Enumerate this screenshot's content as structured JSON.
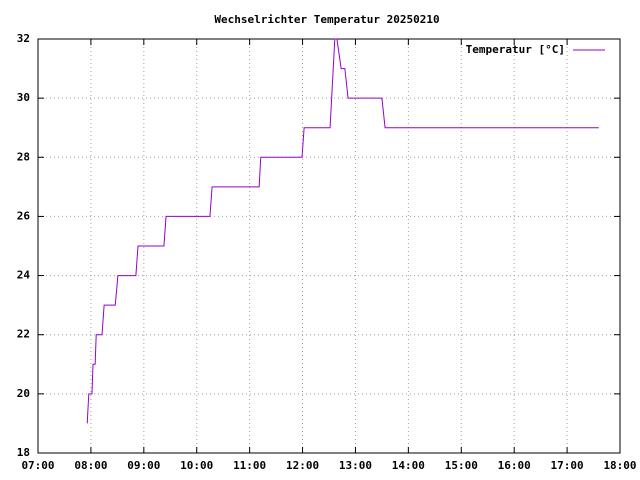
{
  "chart_data": {
    "type": "line",
    "title": "Wechselrichter Temperatur 20250210",
    "x": [
      7.93,
      7.96,
      8.02,
      8.04,
      8.08,
      8.1,
      8.21,
      8.25,
      8.46,
      8.51,
      8.85,
      8.89,
      9.38,
      9.42,
      10.25,
      10.29,
      11.18,
      11.21,
      11.99,
      12.03,
      12.52,
      12.61,
      12.65,
      12.73,
      12.8,
      12.86,
      13.5,
      13.56,
      17.6
    ],
    "series": [
      {
        "name": "Temperatur [°C]",
        "color": "#9400d3",
        "values": [
          19,
          20,
          20,
          21,
          21,
          22,
          22,
          23,
          23,
          24,
          24,
          25,
          25,
          26,
          26,
          27,
          27,
          28,
          28,
          29,
          29,
          32,
          32,
          31,
          31,
          30,
          30,
          29,
          29
        ]
      }
    ],
    "xlim": [
      7,
      18
    ],
    "xticks": [
      {
        "value": 7,
        "label": "07:00"
      },
      {
        "value": 8,
        "label": "08:00"
      },
      {
        "value": 9,
        "label": "09:00"
      },
      {
        "value": 10,
        "label": "10:00"
      },
      {
        "value": 11,
        "label": "11:00"
      },
      {
        "value": 12,
        "label": "12:00"
      },
      {
        "value": 13,
        "label": "13:00"
      },
      {
        "value": 14,
        "label": "14:00"
      },
      {
        "value": 15,
        "label": "15:00"
      },
      {
        "value": 16,
        "label": "16:00"
      },
      {
        "value": 17,
        "label": "17:00"
      },
      {
        "value": 18,
        "label": "18:00"
      }
    ],
    "ylim": [
      18,
      32
    ],
    "yticks": [
      18,
      20,
      22,
      24,
      26,
      28,
      30,
      32
    ],
    "grid": true,
    "legend": "top-right"
  }
}
